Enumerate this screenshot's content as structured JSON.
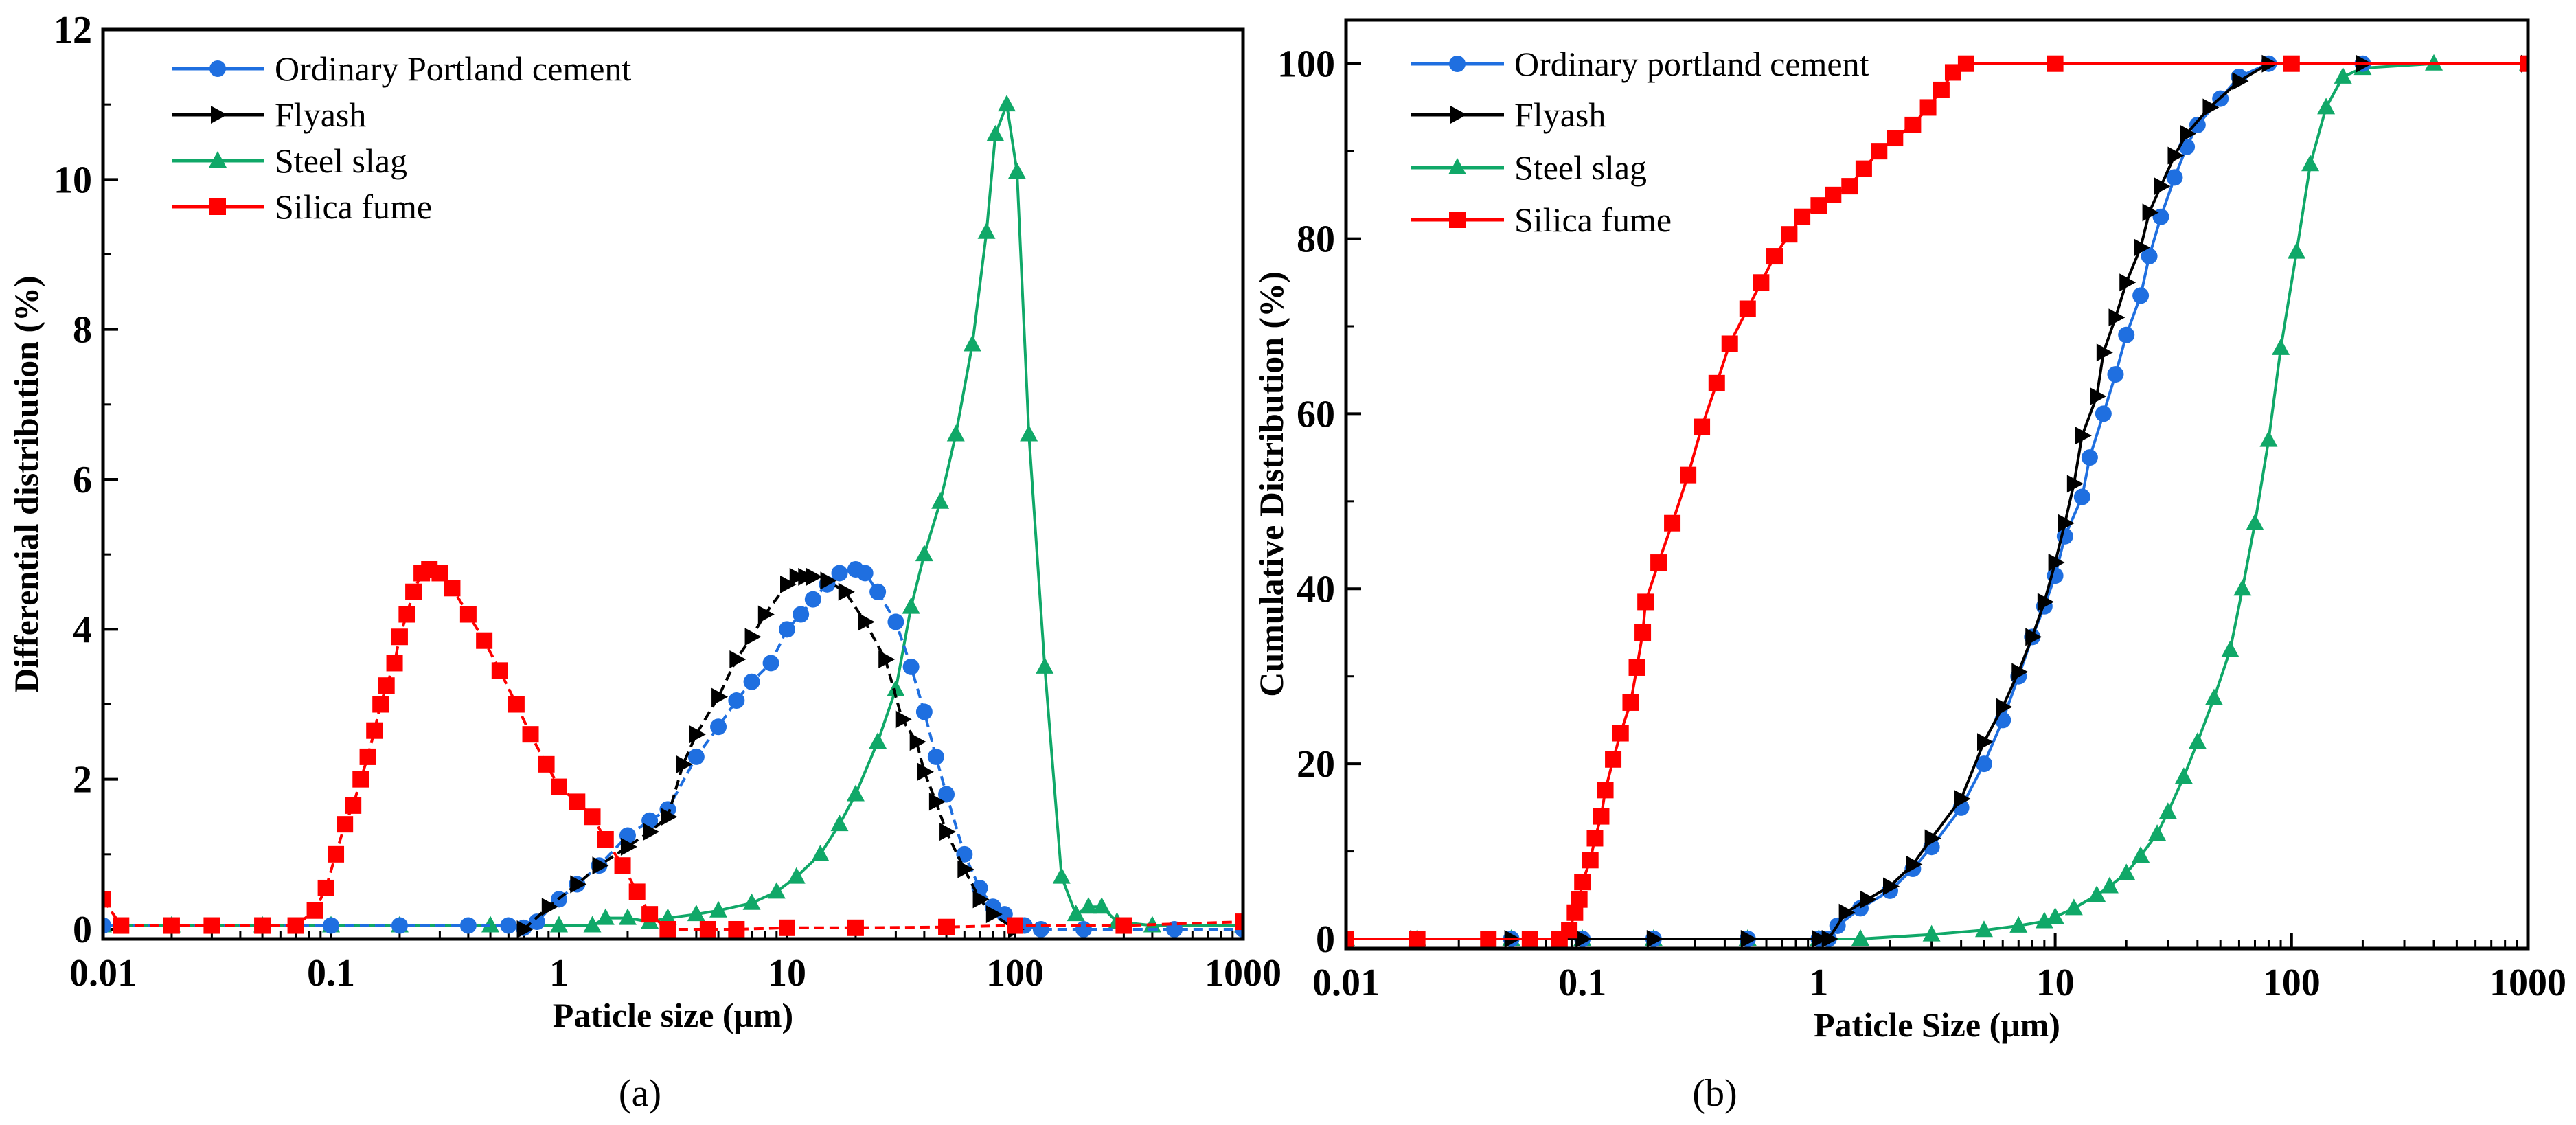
{
  "colors": {
    "opc": "#1f6fe0",
    "flyash": "#000000",
    "slag": "#10a868",
    "silica": "#ff0000"
  },
  "chart_data": [
    {
      "type": "line",
      "panel": "(a)",
      "xlabel": "Paticle size (μm)",
      "ylabel": "Differential distribution (%)",
      "xscale": "log",
      "xlim": [
        0.01,
        1000
      ],
      "ylim": [
        0,
        12
      ],
      "xticks": [
        "0.01",
        "0.1",
        "1",
        "10",
        "100",
        "1000"
      ],
      "yticks": [
        "0",
        "2",
        "4",
        "6",
        "8",
        "10",
        "12"
      ],
      "legend_position": "top-left",
      "series": [
        {
          "name": "Ordinary Portland cement",
          "key": "opc",
          "marker": "circle",
          "dashed": true,
          "x": [
            0.01,
            0.02,
            0.05,
            0.1,
            0.2,
            0.4,
            0.6,
            0.7,
            0.8,
            1,
            1.2,
            1.5,
            2,
            2.5,
            3,
            4,
            5,
            6,
            7,
            8.5,
            10,
            11.5,
            13,
            15,
            17,
            20,
            22,
            25,
            30,
            35,
            40,
            45,
            50,
            60,
            70,
            80,
            90,
            110,
            130,
            200,
            500,
            1000
          ],
          "y": [
            0.05,
            0.05,
            0.05,
            0.05,
            0.05,
            0.05,
            0.05,
            0.02,
            0.1,
            0.4,
            0.6,
            0.85,
            1.25,
            1.45,
            1.6,
            2.3,
            2.7,
            3.05,
            3.3,
            3.55,
            4.0,
            4.2,
            4.4,
            4.6,
            4.75,
            4.8,
            4.75,
            4.5,
            4.1,
            3.5,
            2.9,
            2.3,
            1.8,
            1.0,
            0.55,
            0.3,
            0.2,
            0.05,
            0.0,
            0.0,
            0.0,
            0.0
          ]
        },
        {
          "name": "Flyash",
          "key": "flyash",
          "marker": "triangle-right",
          "dashed": true,
          "x": [
            0.7,
            0.9,
            1.2,
            1.5,
            2,
            2.5,
            3,
            3.5,
            4,
            5,
            6,
            7,
            8,
            10,
            11,
            12,
            13,
            15,
            18,
            22,
            27,
            32,
            37,
            40,
            45,
            50,
            60,
            70,
            80,
            100
          ],
          "y": [
            0.0,
            0.3,
            0.6,
            0.85,
            1.1,
            1.3,
            1.5,
            2.2,
            2.6,
            3.1,
            3.6,
            3.9,
            4.2,
            4.6,
            4.7,
            4.7,
            4.7,
            4.65,
            4.5,
            4.1,
            3.6,
            2.8,
            2.5,
            2.1,
            1.7,
            1.3,
            0.8,
            0.4,
            0.2,
            0.0
          ]
        },
        {
          "name": "Steel slag",
          "key": "slag",
          "marker": "triangle-up",
          "dashed": false,
          "x": [
            0.01,
            0.02,
            0.05,
            0.1,
            0.2,
            0.5,
            1,
            1.4,
            1.6,
            2,
            2.5,
            3,
            4,
            5,
            7,
            9,
            11,
            14,
            17,
            20,
            25,
            30,
            35,
            40,
            47,
            55,
            65,
            75,
            82,
            92,
            102,
            115,
            135,
            160,
            185,
            210,
            240,
            280,
            400,
            1000
          ],
          "y": [
            0.05,
            0.05,
            0.05,
            0.05,
            0.05,
            0.05,
            0.05,
            0.05,
            0.15,
            0.15,
            0.1,
            0.15,
            0.2,
            0.25,
            0.35,
            0.5,
            0.7,
            1.0,
            1.4,
            1.8,
            2.5,
            3.2,
            4.3,
            5.0,
            5.7,
            6.6,
            7.8,
            9.3,
            10.6,
            11.0,
            10.1,
            6.6,
            3.5,
            0.7,
            0.2,
            0.3,
            0.3,
            0.1,
            0.05,
            0.05
          ]
        },
        {
          "name": "Silica fume",
          "key": "silica",
          "marker": "square",
          "dashed": true,
          "x": [
            0.01,
            0.012,
            0.02,
            0.03,
            0.05,
            0.07,
            0.085,
            0.095,
            0.105,
            0.115,
            0.125,
            0.135,
            0.145,
            0.155,
            0.165,
            0.175,
            0.19,
            0.2,
            0.215,
            0.23,
            0.25,
            0.27,
            0.3,
            0.34,
            0.4,
            0.47,
            0.55,
            0.65,
            0.75,
            0.88,
            1.0,
            1.2,
            1.4,
            1.6,
            1.9,
            2.2,
            2.5,
            3,
            4.5,
            6,
            10,
            20,
            50,
            100,
            300,
            1000
          ],
          "y": [
            0.4,
            0.05,
            0.05,
            0.05,
            0.05,
            0.05,
            0.25,
            0.55,
            1.0,
            1.4,
            1.65,
            2.0,
            2.3,
            2.65,
            3.0,
            3.25,
            3.55,
            3.9,
            4.2,
            4.5,
            4.75,
            4.8,
            4.75,
            4.55,
            4.2,
            3.85,
            3.45,
            3.0,
            2.6,
            2.2,
            1.9,
            1.7,
            1.5,
            1.2,
            0.85,
            0.5,
            0.2,
            0.0,
            0.0,
            0.0,
            0.02,
            0.02,
            0.03,
            0.05,
            0.05,
            0.1
          ]
        }
      ]
    },
    {
      "type": "line",
      "panel": "(b)",
      "xlabel": "Paticle Size (μm)",
      "ylabel": "Cumulative Distribution (%)",
      "xscale": "log",
      "xlim": [
        0.01,
        1000
      ],
      "ylim": [
        0,
        105
      ],
      "xticks": [
        "0.01",
        "0.1",
        "1",
        "10",
        "100",
        "1000"
      ],
      "yticks": [
        "0",
        "20",
        "40",
        "60",
        "80",
        "100"
      ],
      "legend_position": "top-left",
      "series": [
        {
          "name": "Ordinary portland cement",
          "key": "opc",
          "marker": "circle",
          "dashed": false,
          "x": [
            0.01,
            0.02,
            0.05,
            0.1,
            0.2,
            0.5,
            1,
            1.1,
            1.2,
            1.5,
            2,
            2.5,
            3,
            4,
            5,
            6,
            7,
            8,
            9,
            10,
            11,
            13,
            14,
            16,
            18,
            20,
            23,
            25,
            28,
            32,
            36,
            40,
            50,
            60,
            80,
            200,
            1000
          ],
          "y": [
            0,
            0,
            0,
            0,
            0,
            0,
            0,
            0,
            1.5,
            3.5,
            5.5,
            8,
            10.5,
            15,
            20,
            25,
            30,
            34.5,
            38,
            41.5,
            46,
            50.5,
            55,
            60,
            64.5,
            69,
            73.5,
            78,
            82.5,
            87,
            90.5,
            93,
            96,
            98.5,
            100,
            100,
            100
          ]
        },
        {
          "name": "Flyash",
          "key": "flyash",
          "marker": "triangle-right",
          "dashed": false,
          "x": [
            0.01,
            0.02,
            0.05,
            0.1,
            0.2,
            0.5,
            1,
            1.1,
            1.3,
            1.6,
            2,
            2.5,
            3,
            4,
            5,
            6,
            7,
            8,
            9,
            10,
            11,
            12,
            13,
            15,
            16,
            18,
            20,
            23,
            25,
            28,
            32,
            36,
            45,
            60,
            80,
            200,
            1000
          ],
          "y": [
            0,
            0,
            0,
            0,
            0,
            0,
            0,
            0,
            3,
            4.5,
            6,
            8.5,
            11.5,
            16,
            22.5,
            26.5,
            30.5,
            34.5,
            38.5,
            43,
            47.5,
            52,
            57.5,
            62,
            67,
            71,
            75,
            79,
            83,
            86,
            89.5,
            92,
            95,
            98,
            100,
            100,
            100
          ]
        },
        {
          "name": "Steel slag",
          "key": "slag",
          "marker": "triangle-up",
          "dashed": false,
          "x": [
            0.01,
            0.02,
            0.05,
            0.1,
            0.2,
            0.5,
            1,
            1.5,
            3,
            5,
            7,
            9,
            10,
            12,
            15,
            17,
            20,
            23,
            27,
            30,
            35,
            40,
            47,
            55,
            62,
            70,
            80,
            90,
            105,
            120,
            140,
            165,
            200,
            400,
            1000
          ],
          "y": [
            0,
            0,
            0,
            0,
            0,
            0,
            0,
            0,
            0.5,
            1,
            1.5,
            2,
            2.5,
            3.5,
            5,
            6,
            7.5,
            9.5,
            12,
            14.5,
            18.5,
            22.5,
            27.5,
            33,
            40,
            47.5,
            57,
            67.5,
            78.5,
            88.5,
            95,
            98.5,
            99.5,
            100,
            100
          ]
        },
        {
          "name": "Silica fume",
          "key": "silica",
          "marker": "square",
          "dashed": false,
          "x": [
            0.01,
            0.02,
            0.04,
            0.06,
            0.08,
            0.088,
            0.093,
            0.097,
            0.1,
            0.108,
            0.113,
            0.12,
            0.125,
            0.135,
            0.145,
            0.16,
            0.17,
            0.18,
            0.185,
            0.21,
            0.24,
            0.28,
            0.32,
            0.37,
            0.42,
            0.5,
            0.57,
            0.65,
            0.75,
            0.85,
            1.0,
            1.15,
            1.35,
            1.55,
            1.8,
            2.1,
            2.5,
            2.9,
            3.3,
            3.7,
            4.2,
            10,
            100,
            1000
          ],
          "y": [
            0,
            0,
            0,
            0,
            0,
            1,
            3,
            4.5,
            6.5,
            9,
            11.5,
            14,
            17,
            20.5,
            23.5,
            27,
            31,
            35,
            38.5,
            43,
            47.5,
            53,
            58.5,
            63.5,
            68,
            72,
            75,
            78,
            80.5,
            82.5,
            83.8,
            85,
            86,
            88,
            90,
            91.5,
            93,
            95,
            97,
            99,
            100,
            100,
            100,
            100
          ]
        }
      ]
    }
  ]
}
